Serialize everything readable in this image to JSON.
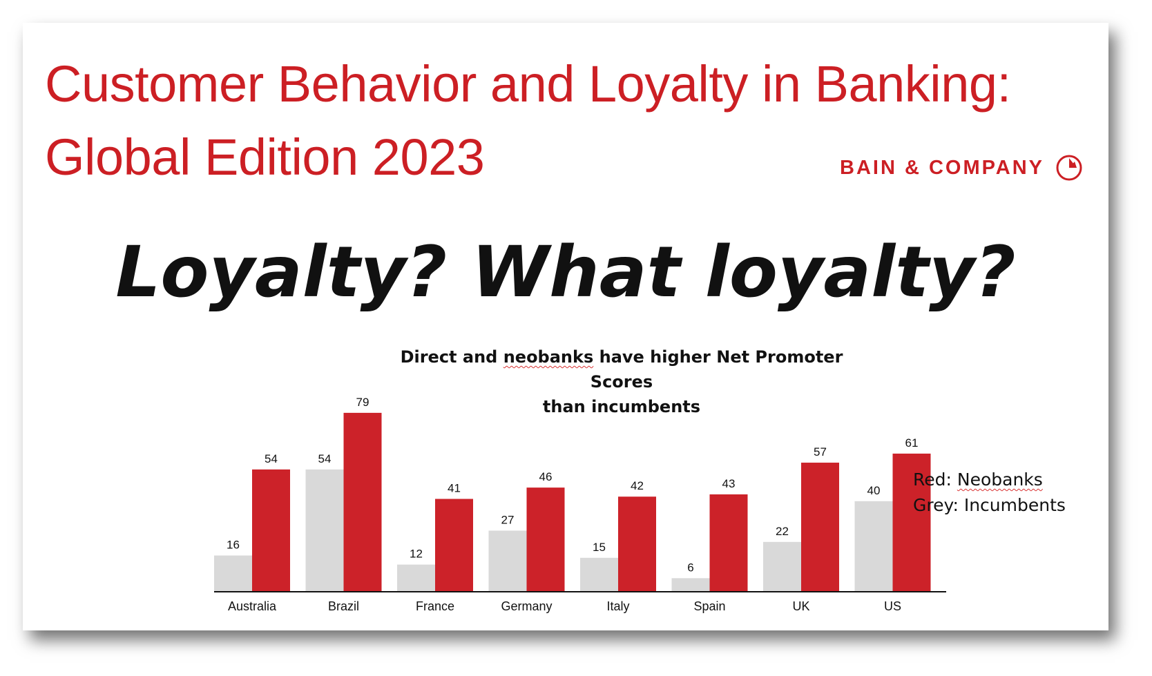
{
  "header": {
    "title_line1": "Customer Behavior and Loyalty in Banking:",
    "title_line2": "Global Edition 2023",
    "brand": "BAIN & COMPANY",
    "brand_icon": "bain-circle-logo-icon"
  },
  "headline": "Loyalty? What loyalty?",
  "legend": {
    "red_label": "Red:",
    "red_name": "Neobanks",
    "grey_label": "Grey: Incumbents"
  },
  "colors": {
    "accent": "#cc1f24",
    "neobanks": "#cc2229",
    "incumbents": "#d9d9d9"
  },
  "chart_data": {
    "type": "bar",
    "title_part1": "Direct and ",
    "title_part2": "neobanks",
    "title_part3": " have higher Net Promoter Scores",
    "title_line2": "than incumbents",
    "categories": [
      "Australia",
      "Brazil",
      "France",
      "Germany",
      "Italy",
      "Spain",
      "UK",
      "US"
    ],
    "series": [
      {
        "name": "Incumbents",
        "color": "#d9d9d9",
        "values": [
          16,
          54,
          12,
          27,
          15,
          6,
          22,
          40
        ]
      },
      {
        "name": "Neobanks",
        "color": "#cc2229",
        "values": [
          54,
          79,
          41,
          46,
          42,
          43,
          57,
          61
        ]
      }
    ],
    "ylim": [
      0,
      80
    ],
    "grid": false,
    "legend_position": "right"
  }
}
